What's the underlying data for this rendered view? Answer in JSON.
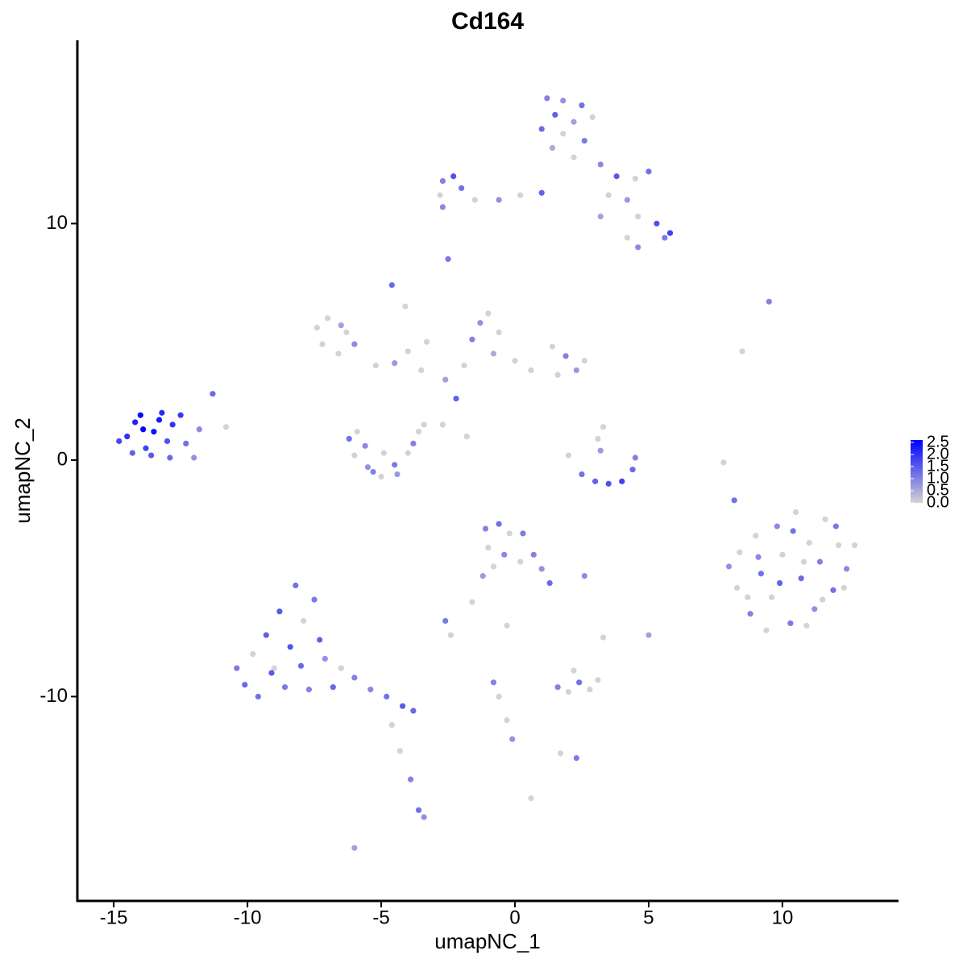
{
  "chart_data": {
    "type": "scatter",
    "title": "Cd164",
    "x_label": "umapNC_1",
    "y_label": "umapNC_2",
    "xlim": [
      -16.36,
      14.34
    ],
    "ylim": [
      -18.64,
      17.75
    ],
    "xticks": [
      -15,
      -10,
      -5,
      0,
      5,
      10
    ],
    "yticks": [
      -10,
      0,
      10
    ],
    "color_low": "#d3d3d3",
    "color_high": "#0000ff",
    "color_lim": [
      0,
      2.6
    ],
    "color_ticks": [
      {
        "value": 0,
        "label": "0.0"
      },
      {
        "value": 0.5,
        "label": "0.5"
      },
      {
        "value": 1,
        "label": "1.0"
      },
      {
        "value": 1.5,
        "label": "1.5"
      },
      {
        "value": 2,
        "label": "2.0"
      },
      {
        "value": 2.5,
        "label": "2.5"
      }
    ],
    "x": [
      -14.5,
      -14.2,
      -13.8,
      -13.5,
      -13.2,
      -13.0,
      -12.8,
      -14.8,
      -14.0,
      -13.6,
      -12.5,
      -12.3,
      -13.3,
      -14.3,
      -12.9,
      -12.0,
      -11.8,
      -11.3,
      -10.8,
      -13.9,
      1.2,
      1.8,
      2.5,
      1.5,
      2.2,
      2.9,
      1.0,
      1.8,
      2.6,
      1.4,
      2.2,
      3.2,
      3.8,
      4.5,
      5.0,
      3.5,
      4.2,
      4.6,
      5.3,
      5.8,
      5.6,
      4.6,
      4.2,
      3.2,
      1.0,
      0.2,
      -0.6,
      -1.5,
      -2.0,
      -2.7,
      -2.3,
      -2.8,
      -2.7,
      -2.5,
      -7.4,
      -7.0,
      -6.5,
      -7.2,
      -6.6,
      -6.0,
      -6.3,
      -5.2,
      -4.5,
      -4.0,
      -3.5,
      -2.6,
      -1.9,
      -1.3,
      -1.0,
      -0.6,
      -1.6,
      -0.8,
      0.0,
      0.6,
      1.4,
      1.9,
      2.3,
      2.6,
      1.6,
      -4.6,
      -4.1,
      -3.3,
      -2.2,
      -2.7,
      -1.8,
      8.5,
      9.5,
      -6.2,
      -6.0,
      -5.5,
      -5.0,
      -4.5,
      -4.0,
      -3.6,
      -3.8,
      -4.9,
      -5.6,
      -5.9,
      -4.4,
      -5.3,
      -3.4,
      2.0,
      2.5,
      3.0,
      3.5,
      4.0,
      4.4,
      4.5,
      3.1,
      3.3,
      3.2,
      7.8,
      8.2,
      8.0,
      8.3,
      8.8,
      8.4,
      9.0,
      9.2,
      9.6,
      9.8,
      10.0,
      10.3,
      10.5,
      10.7,
      11.0,
      11.2,
      11.4,
      11.6,
      11.9,
      12.1,
      12.4,
      12.7,
      9.4,
      10.9,
      12.0,
      8.7,
      9.9,
      10.4,
      11.5,
      9.1,
      10.8,
      12.3,
      -10.4,
      -10.1,
      -9.8,
      -9.6,
      -9.3,
      -9.0,
      -8.8,
      -8.6,
      -8.4,
      -8.2,
      -8.0,
      -7.9,
      -7.7,
      -7.5,
      -7.3,
      -7.1,
      -6.8,
      -6.5,
      -6.0,
      -5.4,
      -4.8,
      -4.2,
      -3.8,
      -4.6,
      -4.3,
      -3.9,
      -3.6,
      -3.4,
      -6.0,
      -9.1,
      -1.1,
      -0.6,
      -0.2,
      0.3,
      -1.0,
      -0.4,
      0.2,
      0.7,
      1.0,
      1.3,
      -0.8,
      -1.2,
      -1.6,
      2.6,
      -2.6,
      -2.4,
      -0.3,
      3.3,
      5.0,
      -0.8,
      -0.6,
      -0.3,
      -0.1,
      1.6,
      2.0,
      2.4,
      2.8,
      3.1,
      2.2,
      2.3,
      0.6,
      1.7
    ],
    "y": [
      1.0,
      1.6,
      0.5,
      1.2,
      2.0,
      0.8,
      1.5,
      0.8,
      1.9,
      0.2,
      1.9,
      0.7,
      1.7,
      0.3,
      0.1,
      0.1,
      1.3,
      2.8,
      1.4,
      1.3,
      15.3,
      15.2,
      15.0,
      14.6,
      14.3,
      14.5,
      14.0,
      13.8,
      13.5,
      13.2,
      12.8,
      12.5,
      12.0,
      11.9,
      12.2,
      11.2,
      11.0,
      10.3,
      10.0,
      9.6,
      9.4,
      9.0,
      9.4,
      10.3,
      11.3,
      11.2,
      11.0,
      11.0,
      11.5,
      11.8,
      12.0,
      11.2,
      10.7,
      8.5,
      5.6,
      6.0,
      5.7,
      4.9,
      4.5,
      4.9,
      5.4,
      4.0,
      4.1,
      4.6,
      3.8,
      3.4,
      4.0,
      5.8,
      6.2,
      5.4,
      5.1,
      4.5,
      4.2,
      3.8,
      4.8,
      4.4,
      3.8,
      4.2,
      3.6,
      7.4,
      6.5,
      5.0,
      2.6,
      1.5,
      1.0,
      4.6,
      6.7,
      0.9,
      0.2,
      -0.3,
      -0.7,
      -0.2,
      0.3,
      1.2,
      0.7,
      0.3,
      0.6,
      1.2,
      -0.6,
      -0.5,
      1.5,
      0.2,
      -0.6,
      -0.9,
      -1.0,
      -0.9,
      -0.4,
      0.1,
      0.9,
      1.4,
      0.4,
      -0.1,
      -1.7,
      -4.5,
      -5.4,
      -6.5,
      -3.9,
      -3.2,
      -4.8,
      -5.8,
      -2.8,
      -4.0,
      -6.9,
      -2.2,
      -5.0,
      -3.5,
      -6.3,
      -4.3,
      -2.5,
      -5.5,
      -3.6,
      -4.6,
      -3.6,
      -7.2,
      -7.0,
      -2.8,
      -5.8,
      -5.2,
      -3.0,
      -5.9,
      -4.1,
      -4.3,
      -5.4,
      -8.8,
      -9.5,
      -8.2,
      -10.0,
      -7.4,
      -8.8,
      -6.4,
      -9.6,
      -7.9,
      -5.3,
      -8.7,
      -6.8,
      -9.7,
      -5.9,
      -7.6,
      -8.4,
      -9.6,
      -8.8,
      -9.2,
      -9.7,
      -10.0,
      -10.4,
      -10.6,
      -11.2,
      -12.3,
      -13.5,
      -14.8,
      -15.1,
      -16.4,
      -9.0,
      -2.9,
      -2.7,
      -3.1,
      -3.1,
      -3.7,
      -4.0,
      -4.3,
      -4.0,
      -4.6,
      -5.2,
      -4.5,
      -4.9,
      -6.0,
      -4.9,
      -6.8,
      -7.4,
      -7.0,
      -7.5,
      -7.4,
      -9.4,
      -10.0,
      -11.0,
      -11.8,
      -9.6,
      -9.8,
      -9.4,
      -9.7,
      -9.3,
      -8.9,
      -12.6,
      -14.3,
      -12.4
    ],
    "values": [
      2.0,
      2.2,
      1.8,
      2.4,
      2.1,
      1.6,
      2.0,
      1.7,
      2.5,
      1.5,
      1.9,
      1.2,
      2.3,
      1.4,
      1.3,
      0.8,
      0.9,
      1.3,
      0,
      2.5,
      1.0,
      0.8,
      1.2,
      1.4,
      0.6,
      0,
      1.3,
      0,
      1.1,
      0.5,
      0,
      0.9,
      1.5,
      0,
      1.2,
      0,
      0.7,
      0,
      1.6,
      1.8,
      1.1,
      0.9,
      0,
      0.6,
      1.4,
      0,
      0.8,
      0,
      1.2,
      1.0,
      1.6,
      0,
      0.9,
      1.1,
      0,
      0,
      0.6,
      0,
      0,
      0.9,
      0,
      0,
      0.7,
      0,
      0,
      0.6,
      0,
      0.8,
      0,
      0,
      1.0,
      0.5,
      0,
      0,
      0,
      1.0,
      0.7,
      0,
      0,
      1.3,
      0,
      0,
      1.4,
      0,
      0,
      0,
      1.0,
      1.2,
      0,
      0.8,
      0,
      1.1,
      0,
      0,
      1.0,
      0,
      0.9,
      0,
      0.7,
      1.0,
      0,
      0,
      1.2,
      1.4,
      1.6,
      1.8,
      1.3,
      1.0,
      0,
      0,
      0.7,
      0,
      1.2,
      0.8,
      0,
      1.0,
      0,
      0,
      1.2,
      0,
      0.9,
      0,
      1.1,
      0,
      1.3,
      0,
      0.8,
      1.0,
      0,
      1.2,
      0,
      0.9,
      0,
      0,
      0,
      1.1,
      0,
      1.4,
      1.2,
      0,
      0.9,
      0,
      0,
      1.1,
      1.3,
      0,
      1.2,
      1.4,
      0,
      1.5,
      1.1,
      1.6,
      1.2,
      1.3,
      0,
      1.0,
      1.1,
      1.4,
      0.8,
      1.3,
      0,
      1.0,
      0.9,
      1.2,
      1.5,
      1.3,
      0,
      0,
      1.0,
      1.2,
      0.8,
      0.6,
      1.5,
      1.0,
      1.2,
      0,
      1.1,
      0,
      0.9,
      0,
      1.0,
      0.8,
      1.3,
      0,
      0.7,
      0,
      0.9,
      1.1,
      0,
      0,
      0,
      0.6,
      1.0,
      0,
      0,
      0.8,
      1.0,
      0,
      1.2,
      0,
      0,
      0,
      1.1,
      0,
      0
    ]
  }
}
